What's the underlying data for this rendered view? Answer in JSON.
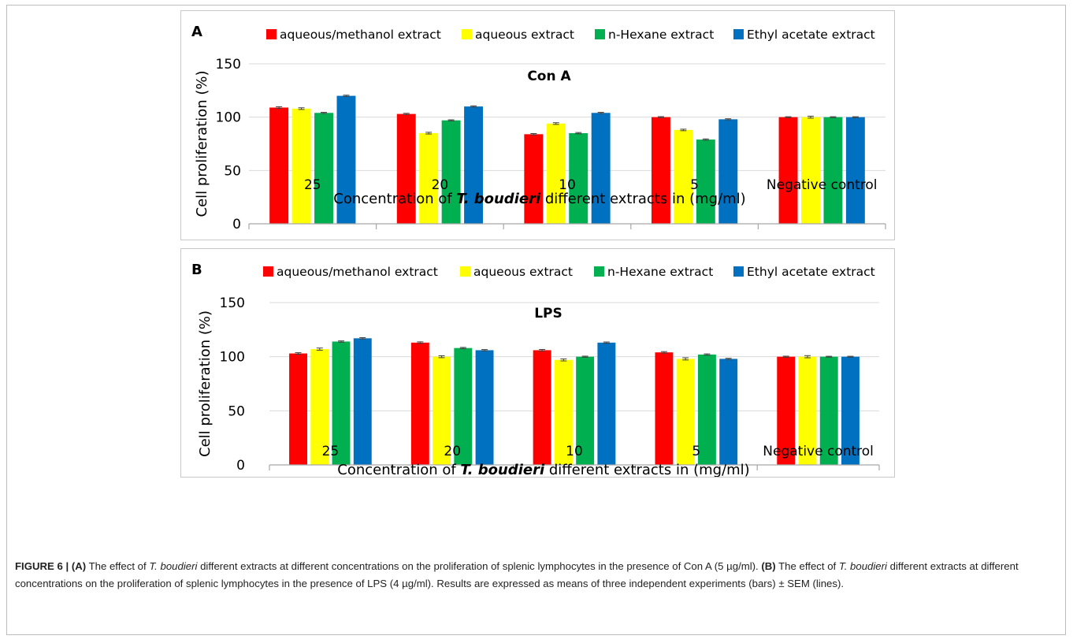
{
  "colors": {
    "aqueous_methanol": "#ff0000",
    "aqueous": "#ffff00",
    "n_hexane": "#00b050",
    "ethyl_acetate": "#0070c0",
    "gridline": "#d9d9d9",
    "axis": "#a6a6a6",
    "error_bar": "#404040"
  },
  "panels": [
    {
      "letter": "A",
      "inner_title": "Con A",
      "ylabel": "Cell proliferation (%)",
      "xlabel_pre": "Concentration of ",
      "xlabel_em": "T. boudieri",
      "xlabel_post": " different extracts in (mg/ml)",
      "legend": [
        "aqueous/methanol extract",
        "aqueous extract",
        "n-Hexane extract",
        "Ethyl acetate extract"
      ],
      "y_ticks": [
        "150",
        "100",
        "50",
        "0"
      ]
    },
    {
      "letter": "B",
      "inner_title": "LPS",
      "ylabel": "Cell proliferation (%)",
      "xlabel_pre": "Concentration of ",
      "xlabel_em": "T. boudieri",
      "xlabel_post": " different extracts in (mg/ml)",
      "legend": [
        "aqueous/methanol extract",
        "aqueous extract",
        "n-Hexane extract",
        "Ethyl acetate extract"
      ],
      "y_ticks": [
        "150",
        "100",
        "50",
        "0"
      ]
    }
  ],
  "chart_data": [
    {
      "type": "bar",
      "title": "Con A",
      "panel": "A",
      "xlabel": "Concentration of T. boudieri different extracts in (mg/ml)",
      "ylabel": "Cell proliferation (%)",
      "ylim": [
        0,
        150
      ],
      "y_ticks": [
        0,
        50,
        100,
        150
      ],
      "grid": "horizontal",
      "legend_position": "top",
      "categories": [
        "25",
        "20",
        "10",
        "5",
        "Negative control"
      ],
      "series": [
        {
          "name": "aqueous/methanol extract",
          "color": "#ff0000",
          "values": [
            109,
            103,
            84,
            100,
            100
          ],
          "sem": [
            0.8,
            0.6,
            0.6,
            0.5,
            0.4
          ]
        },
        {
          "name": "aqueous extract",
          "color": "#ffff00",
          "values": [
            108,
            85,
            94,
            88,
            100
          ],
          "sem": [
            0.8,
            0.8,
            0.8,
            0.7,
            0.9
          ]
        },
        {
          "name": "n-Hexane extract",
          "color": "#00b050",
          "values": [
            104,
            97,
            85,
            79,
            100
          ],
          "sem": [
            0.5,
            0.5,
            0.6,
            0.6,
            0.4
          ]
        },
        {
          "name": "Ethyl acetate extract",
          "color": "#0070c0",
          "values": [
            120,
            110,
            104,
            98,
            100
          ],
          "sem": [
            0.6,
            0.6,
            0.5,
            0.5,
            0.4
          ]
        }
      ]
    },
    {
      "type": "bar",
      "title": "LPS",
      "panel": "B",
      "xlabel": "Concentration of T. boudieri different extracts in (mg/ml)",
      "ylabel": "Cell proliferation (%)",
      "ylim": [
        0,
        150
      ],
      "y_ticks": [
        0,
        50,
        100,
        150
      ],
      "grid": "horizontal",
      "legend_position": "top",
      "categories": [
        "25",
        "20",
        "10",
        "5",
        "Negative control"
      ],
      "series": [
        {
          "name": "aqueous/methanol extract",
          "color": "#ff0000",
          "values": [
            103,
            113,
            106,
            104,
            100
          ],
          "sem": [
            0.7,
            0.7,
            0.7,
            0.7,
            0.5
          ]
        },
        {
          "name": "aqueous extract",
          "color": "#ffff00",
          "values": [
            107,
            100,
            97,
            98,
            100
          ],
          "sem": [
            1.0,
            0.9,
            0.9,
            1.0,
            1.0
          ]
        },
        {
          "name": "n-Hexane extract",
          "color": "#00b050",
          "values": [
            114,
            108,
            100,
            102,
            100
          ],
          "sem": [
            0.6,
            0.6,
            0.5,
            0.6,
            0.4
          ]
        },
        {
          "name": "Ethyl acetate extract",
          "color": "#0070c0",
          "values": [
            117,
            106,
            113,
            98,
            100
          ],
          "sem": [
            0.6,
            0.6,
            0.6,
            0.5,
            0.4
          ]
        }
      ]
    }
  ],
  "caption": {
    "label": "FIGURE 6 | ",
    "a_tag": "(A)",
    "a_pre": " The effect of ",
    "a_em": "T. boudieri",
    "a_post": " different extracts at different concentrations on the proliferation of splenic lymphocytes in the presence of Con A (5 µg/ml). ",
    "b_tag": "(B)",
    "b_pre": " The effect of ",
    "b_em": "T. boudieri",
    "b_post": " different extracts at different concentrations on the proliferation of splenic lymphocytes in the presence of LPS (4 µg/ml). Results are expressed as means of three independent experiments (bars) ± SEM (lines)."
  }
}
